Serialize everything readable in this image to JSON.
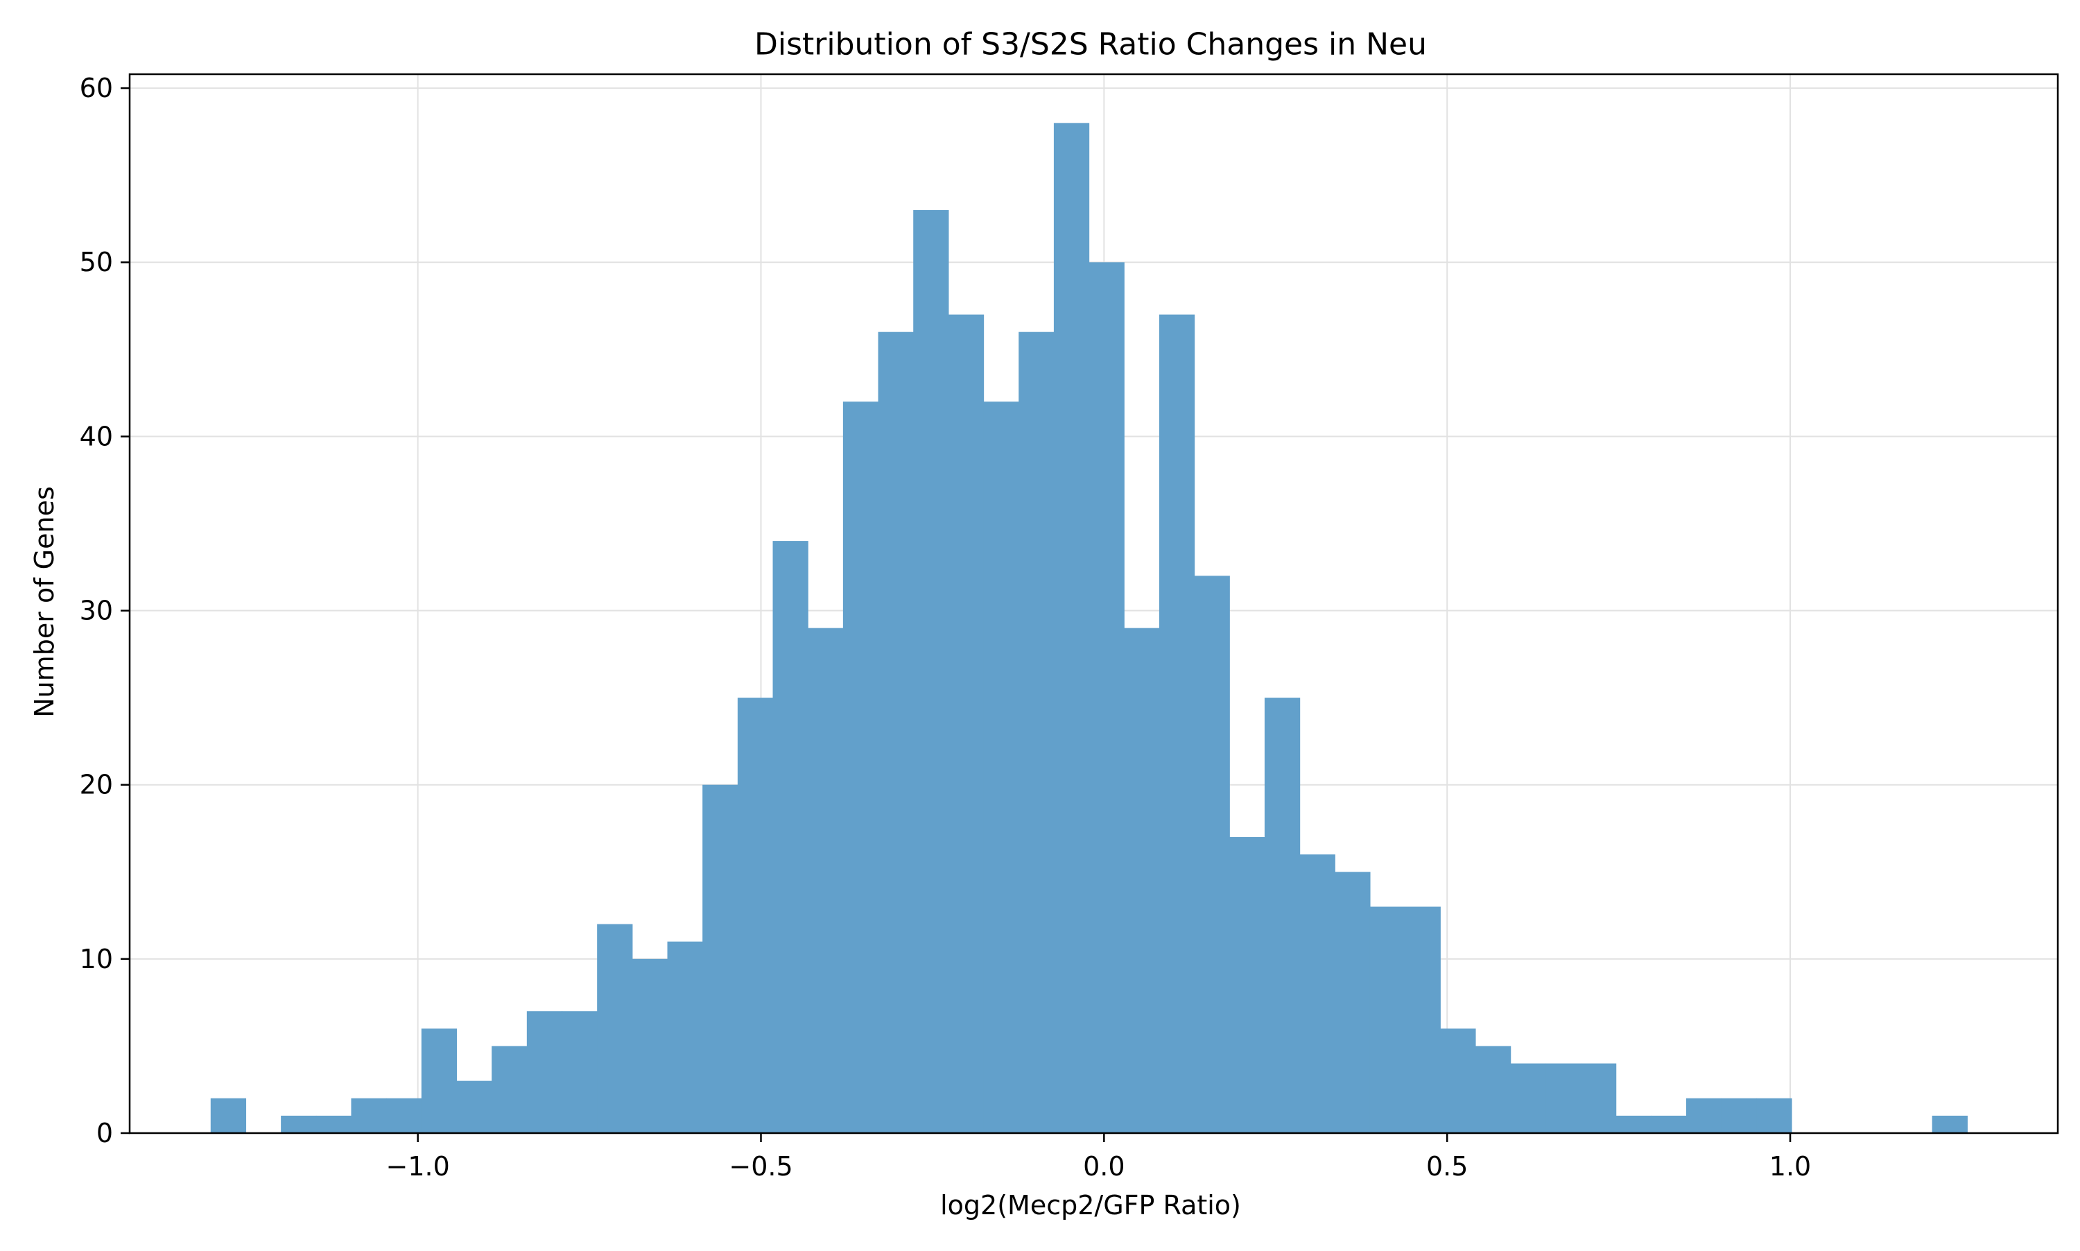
{
  "chart_data": {
    "type": "bar",
    "title": "Distribution of S3/S2S Ratio Changes in Neu",
    "xlabel": "log2(Mecp2/GFP Ratio)",
    "ylabel": "Number of Genes",
    "xlim": [
      -1.42,
      1.39
    ],
    "ylim": [
      0,
      60.8
    ],
    "xticks": [
      -1.0,
      -0.5,
      0.0,
      0.5,
      1.0
    ],
    "xtick_labels": [
      "−1.0",
      "−0.5",
      "0.0",
      "0.5",
      "1.0"
    ],
    "yticks": [
      0,
      10,
      20,
      30,
      40,
      50,
      60
    ],
    "ytick_labels": [
      "0",
      "10",
      "20",
      "30",
      "40",
      "50",
      "60"
    ],
    "grid": true,
    "bar_color": "#62a0cb",
    "bin_start": -1.302,
    "bin_width": 0.0512,
    "counts": [
      2,
      0,
      1,
      1,
      2,
      2,
      6,
      3,
      5,
      7,
      7,
      12,
      10,
      11,
      20,
      25,
      34,
      29,
      42,
      46,
      53,
      47,
      42,
      46,
      58,
      50,
      29,
      47,
      32,
      17,
      25,
      16,
      15,
      13,
      13,
      6,
      5,
      4,
      4,
      4,
      1,
      1,
      2,
      2,
      2,
      0,
      0,
      0,
      0,
      1
    ]
  }
}
